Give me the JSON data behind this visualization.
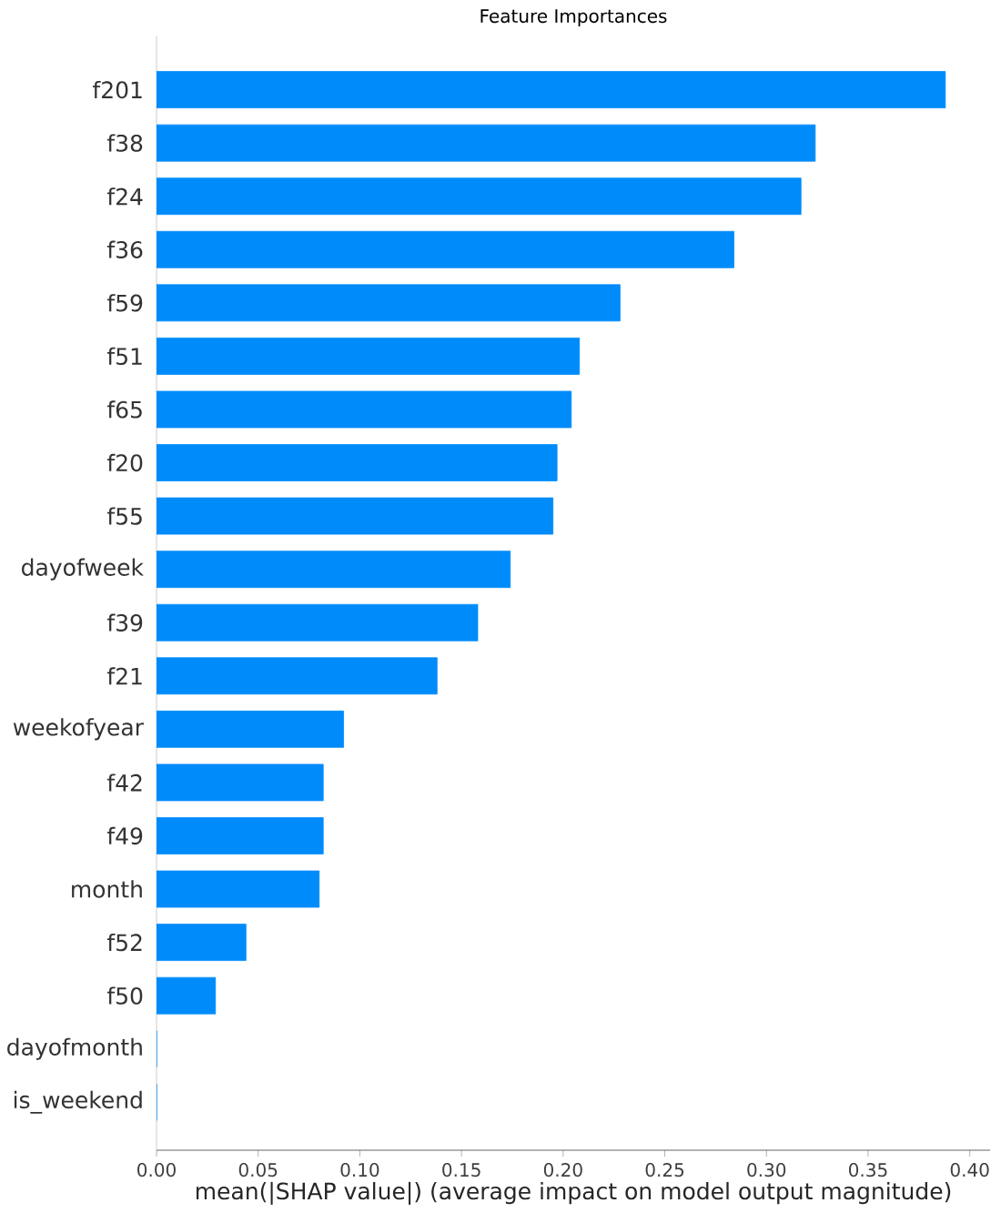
{
  "chart_data": {
    "type": "bar",
    "orientation": "horizontal",
    "title": "Feature Importances",
    "xlabel": "mean(|SHAP value|) (average impact on model output magnitude)",
    "categories": [
      "f201",
      "f38",
      "f24",
      "f36",
      "f59",
      "f51",
      "f65",
      "f20",
      "f55",
      "dayofweek",
      "f39",
      "f21",
      "weekofyear",
      "f42",
      "f49",
      "month",
      "f52",
      "f50",
      "dayofmonth",
      "is_weekend"
    ],
    "values": [
      0.388,
      0.324,
      0.317,
      0.284,
      0.228,
      0.208,
      0.204,
      0.197,
      0.195,
      0.174,
      0.158,
      0.138,
      0.092,
      0.082,
      0.082,
      0.08,
      0.044,
      0.029,
      0,
      0
    ],
    "color": "#008bfb",
    "xlim": [
      0,
      0.41
    ],
    "xticks": [
      {
        "value": 0,
        "label": "0.00"
      },
      {
        "value": 0.05,
        "label": "0.05"
      },
      {
        "value": 0.1,
        "label": "0.10"
      },
      {
        "value": 0.15,
        "label": "0.15"
      },
      {
        "value": 0.2,
        "label": "0.20"
      },
      {
        "value": 0.25,
        "label": "0.25"
      },
      {
        "value": 0.3,
        "label": "0.30"
      },
      {
        "value": 0.35,
        "label": "0.35"
      },
      {
        "value": 0.4,
        "label": "0.40"
      }
    ]
  }
}
